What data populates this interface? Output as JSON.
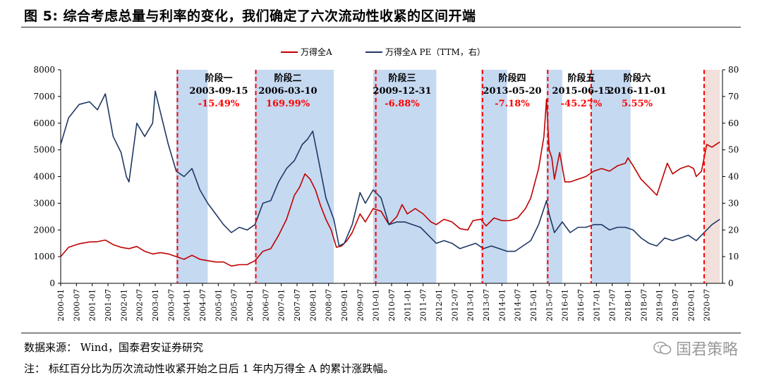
{
  "figure": {
    "title": "图 5:  综合考虑总量与利率的变化，我们确定了六次流动性收紧的区间开端",
    "source": "数据来源：   Wind，国泰君安证券研究",
    "note": "注：  标红百分比为历次流动性收紧开始之日后 1 年内万得全 A 的累计涨跌幅。",
    "watermark": "国君策略"
  },
  "colors": {
    "series_a": "#c00000",
    "series_b": "#1f3864",
    "shade": "#c5d9f1",
    "shade_last": "#f2e0dc",
    "marker": "#ff0000",
    "pct": "#ff0000"
  },
  "chart_data": {
    "type": "line",
    "legend": [
      "万得全A",
      "万得全A PE（TTM，右）"
    ],
    "legend_position": "top-center",
    "y_left": {
      "min": 0,
      "max": 8000,
      "ticks": [
        "0",
        "1000",
        "2000",
        "3000",
        "4000",
        "5000",
        "6000",
        "7000",
        "8000"
      ]
    },
    "y_right": {
      "min": 0,
      "max": 80,
      "ticks": [
        "0",
        "10",
        "20",
        "30",
        "40",
        "50",
        "60",
        "70",
        "80"
      ]
    },
    "x_range": [
      "2000-01",
      "2020-12"
    ],
    "x_ticks": [
      "2000-01",
      "2000-07",
      "2001-01",
      "2001-07",
      "2002-01",
      "2002-07",
      "2003-01",
      "2003-07",
      "2004-01",
      "2004-07",
      "2005-01",
      "2005-07",
      "2006-01",
      "2006-07",
      "2007-01",
      "2007-07",
      "2008-01",
      "2008-07",
      "2009-01",
      "2009-07",
      "2010-01",
      "2010-07",
      "2011-01",
      "2011-07",
      "2012-01",
      "2012-07",
      "2013-01",
      "2013-07",
      "2014-01",
      "2014-07",
      "2015-01",
      "2015-07",
      "2016-01",
      "2016-07",
      "2017-01",
      "2017-07",
      "2018-01",
      "2018-07",
      "2019-01",
      "2019-07",
      "2020-01",
      "2020-07"
    ],
    "grid": false,
    "shaded_periods": [
      {
        "start": "2003-09",
        "end": "2004-09"
      },
      {
        "start": "2006-03",
        "end": "2008-09"
      },
      {
        "start": "2009-12",
        "end": "2011-12"
      },
      {
        "start": "2013-05",
        "end": "2014-03"
      },
      {
        "start": "2015-06",
        "end": "2015-12"
      },
      {
        "start": "2016-11",
        "end": "2018-02"
      },
      {
        "start": "2020-06",
        "end": "2020-12"
      }
    ],
    "stages": [
      {
        "label": "阶段一",
        "date": "2003-09-15",
        "pct": "-15.49%"
      },
      {
        "label": "阶段二",
        "date": "2006-03-10",
        "pct": "169.99%"
      },
      {
        "label": "阶段三",
        "date": "2009-12-31",
        "pct": "-6.88%"
      },
      {
        "label": "阶段四",
        "date": "2013-05-20",
        "pct": "-7.18%"
      },
      {
        "label": "阶段五",
        "date": "2015-06-15",
        "pct": "-45.27%"
      },
      {
        "label": "阶段六",
        "date": "2016-11-01",
        "pct": "5.55%"
      }
    ],
    "extra_marker_date": "2020-06-01",
    "series": [
      {
        "name": "万得全A",
        "axis": "left",
        "points": [
          [
            "2000-01",
            1000
          ],
          [
            "2000-04",
            1350
          ],
          [
            "2000-08",
            1480
          ],
          [
            "2000-12",
            1550
          ],
          [
            "2001-03",
            1560
          ],
          [
            "2001-06",
            1620
          ],
          [
            "2001-09",
            1450
          ],
          [
            "2001-12",
            1350
          ],
          [
            "2002-03",
            1300
          ],
          [
            "2002-06",
            1380
          ],
          [
            "2002-09",
            1200
          ],
          [
            "2002-12",
            1100
          ],
          [
            "2003-03",
            1150
          ],
          [
            "2003-06",
            1100
          ],
          [
            "2003-09",
            1000
          ],
          [
            "2003-12",
            900
          ],
          [
            "2004-03",
            1050
          ],
          [
            "2004-06",
            900
          ],
          [
            "2004-09",
            850
          ],
          [
            "2004-12",
            800
          ],
          [
            "2005-03",
            800
          ],
          [
            "2005-06",
            650
          ],
          [
            "2005-09",
            700
          ],
          [
            "2005-12",
            700
          ],
          [
            "2006-03",
            850
          ],
          [
            "2006-06",
            1200
          ],
          [
            "2006-09",
            1300
          ],
          [
            "2006-12",
            1800
          ],
          [
            "2007-03",
            2400
          ],
          [
            "2007-06",
            3300
          ],
          [
            "2007-08",
            3600
          ],
          [
            "2007-10",
            4100
          ],
          [
            "2007-12",
            3900
          ],
          [
            "2008-02",
            3500
          ],
          [
            "2008-04",
            2900
          ],
          [
            "2008-06",
            2400
          ],
          [
            "2008-08",
            2000
          ],
          [
            "2008-10",
            1350
          ],
          [
            "2008-12",
            1400
          ],
          [
            "2009-02",
            1600
          ],
          [
            "2009-04",
            1900
          ],
          [
            "2009-07",
            2600
          ],
          [
            "2009-09",
            2300
          ],
          [
            "2009-12",
            2800
          ],
          [
            "2010-03",
            2700
          ],
          [
            "2010-06",
            2200
          ],
          [
            "2010-09",
            2500
          ],
          [
            "2010-11",
            2950
          ],
          [
            "2011-01",
            2600
          ],
          [
            "2011-04",
            2800
          ],
          [
            "2011-07",
            2600
          ],
          [
            "2011-10",
            2300
          ],
          [
            "2011-12",
            2200
          ],
          [
            "2012-03",
            2400
          ],
          [
            "2012-06",
            2300
          ],
          [
            "2012-09",
            2050
          ],
          [
            "2012-12",
            2000
          ],
          [
            "2013-02",
            2350
          ],
          [
            "2013-05",
            2400
          ],
          [
            "2013-07",
            2150
          ],
          [
            "2013-10",
            2450
          ],
          [
            "2014-01",
            2350
          ],
          [
            "2014-04",
            2350
          ],
          [
            "2014-07",
            2450
          ],
          [
            "2014-10",
            2800
          ],
          [
            "2014-12",
            3200
          ],
          [
            "2015-03",
            4300
          ],
          [
            "2015-05",
            5500
          ],
          [
            "2015-06",
            6900
          ],
          [
            "2015-07",
            5000
          ],
          [
            "2015-08",
            4700
          ],
          [
            "2015-09",
            3900
          ],
          [
            "2015-11",
            4900
          ],
          [
            "2016-01",
            3800
          ],
          [
            "2016-03",
            3800
          ],
          [
            "2016-06",
            3900
          ],
          [
            "2016-09",
            4000
          ],
          [
            "2016-12",
            4200
          ],
          [
            "2017-03",
            4300
          ],
          [
            "2017-06",
            4200
          ],
          [
            "2017-09",
            4400
          ],
          [
            "2017-12",
            4500
          ],
          [
            "2018-01",
            4700
          ],
          [
            "2018-03",
            4400
          ],
          [
            "2018-06",
            3900
          ],
          [
            "2018-09",
            3600
          ],
          [
            "2018-12",
            3300
          ],
          [
            "2019-02",
            3900
          ],
          [
            "2019-04",
            4500
          ],
          [
            "2019-06",
            4100
          ],
          [
            "2019-09",
            4300
          ],
          [
            "2019-12",
            4400
          ],
          [
            "2020-02",
            4300
          ],
          [
            "2020-03",
            4000
          ],
          [
            "2020-05",
            4200
          ],
          [
            "2020-07",
            5200
          ],
          [
            "2020-09",
            5100
          ],
          [
            "2020-12",
            5300
          ]
        ]
      },
      {
        "name": "万得全A PE（TTM，右）",
        "axis": "right",
        "points": [
          [
            "2000-01",
            52
          ],
          [
            "2000-04",
            62
          ],
          [
            "2000-08",
            67
          ],
          [
            "2000-12",
            68
          ],
          [
            "2001-03",
            65
          ],
          [
            "2001-06",
            71
          ],
          [
            "2001-09",
            55
          ],
          [
            "2001-12",
            49
          ],
          [
            "2002-02",
            40
          ],
          [
            "2002-03",
            38
          ],
          [
            "2002-06",
            60
          ],
          [
            "2002-09",
            55
          ],
          [
            "2002-12",
            60
          ],
          [
            "2003-01",
            72
          ],
          [
            "2003-03",
            64
          ],
          [
            "2003-06",
            52
          ],
          [
            "2003-09",
            42
          ],
          [
            "2003-12",
            40
          ],
          [
            "2004-03",
            43
          ],
          [
            "2004-06",
            35
          ],
          [
            "2004-09",
            30
          ],
          [
            "2004-12",
            26
          ],
          [
            "2005-03",
            22
          ],
          [
            "2005-06",
            19
          ],
          [
            "2005-09",
            21
          ],
          [
            "2005-12",
            20
          ],
          [
            "2006-03",
            22
          ],
          [
            "2006-06",
            30
          ],
          [
            "2006-09",
            31
          ],
          [
            "2006-12",
            38
          ],
          [
            "2007-03",
            43
          ],
          [
            "2007-06",
            46
          ],
          [
            "2007-09",
            52
          ],
          [
            "2007-11",
            54
          ],
          [
            "2008-01",
            57
          ],
          [
            "2008-03",
            47
          ],
          [
            "2008-06",
            32
          ],
          [
            "2008-09",
            24
          ],
          [
            "2008-11",
            14
          ],
          [
            "2009-01",
            15
          ],
          [
            "2009-04",
            22
          ],
          [
            "2009-07",
            34
          ],
          [
            "2009-09",
            30
          ],
          [
            "2009-12",
            35
          ],
          [
            "2010-03",
            32
          ],
          [
            "2010-06",
            22
          ],
          [
            "2010-09",
            23
          ],
          [
            "2010-12",
            23
          ],
          [
            "2011-03",
            22
          ],
          [
            "2011-06",
            21
          ],
          [
            "2011-09",
            18
          ],
          [
            "2011-12",
            15
          ],
          [
            "2012-03",
            16
          ],
          [
            "2012-06",
            15
          ],
          [
            "2012-09",
            13
          ],
          [
            "2012-12",
            14
          ],
          [
            "2013-03",
            15
          ],
          [
            "2013-06",
            13
          ],
          [
            "2013-09",
            14
          ],
          [
            "2013-12",
            13
          ],
          [
            "2014-03",
            12
          ],
          [
            "2014-06",
            12
          ],
          [
            "2014-09",
            14
          ],
          [
            "2014-12",
            16
          ],
          [
            "2015-03",
            22
          ],
          [
            "2015-06",
            31
          ],
          [
            "2015-07",
            26
          ],
          [
            "2015-09",
            19
          ],
          [
            "2015-12",
            23
          ],
          [
            "2016-03",
            19
          ],
          [
            "2016-06",
            21
          ],
          [
            "2016-09",
            21
          ],
          [
            "2016-12",
            22
          ],
          [
            "2017-03",
            22
          ],
          [
            "2017-06",
            20
          ],
          [
            "2017-09",
            21
          ],
          [
            "2017-12",
            21
          ],
          [
            "2018-03",
            20
          ],
          [
            "2018-06",
            17
          ],
          [
            "2018-09",
            15
          ],
          [
            "2018-12",
            14
          ],
          [
            "2019-03",
            17
          ],
          [
            "2019-06",
            16
          ],
          [
            "2019-09",
            17
          ],
          [
            "2019-12",
            18
          ],
          [
            "2020-03",
            16
          ],
          [
            "2020-06",
            19
          ],
          [
            "2020-09",
            22
          ],
          [
            "2020-12",
            24
          ]
        ]
      }
    ]
  }
}
